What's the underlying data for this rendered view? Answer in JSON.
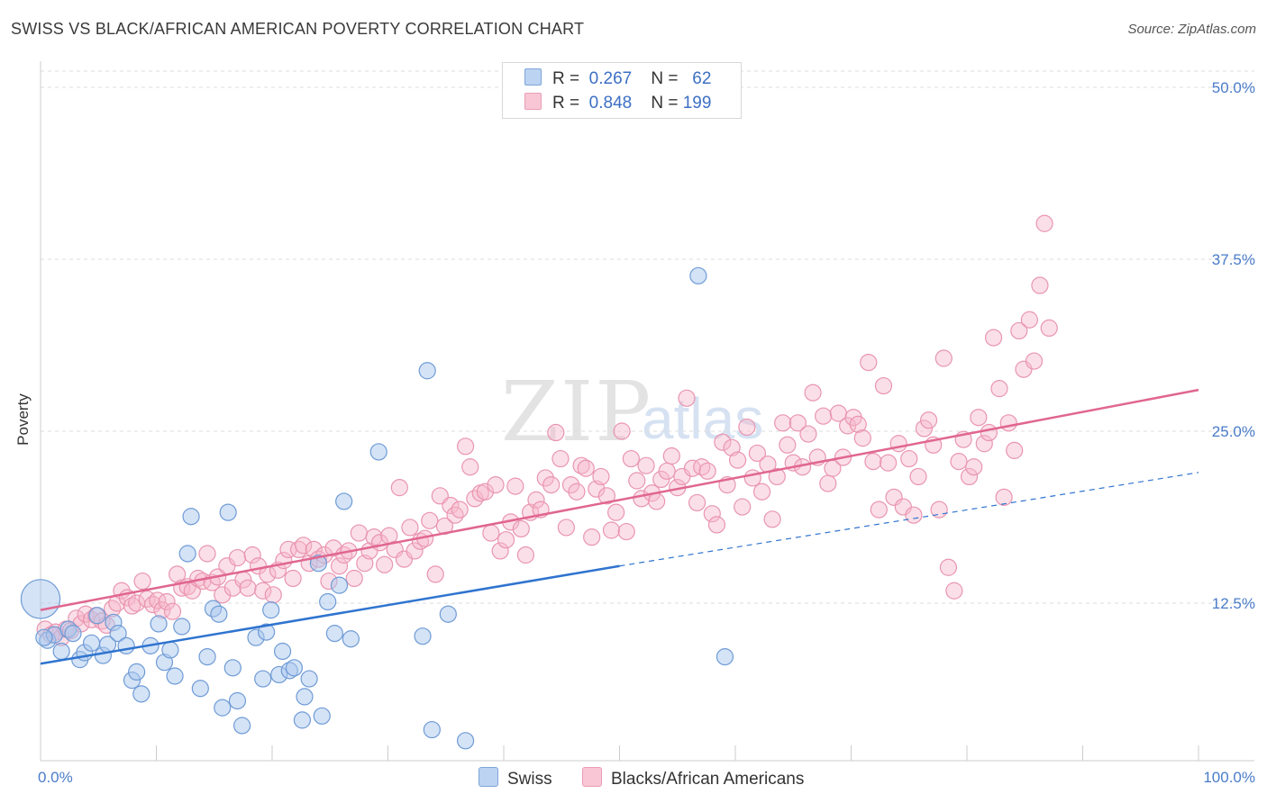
{
  "title": "SWISS VS BLACK/AFRICAN AMERICAN POVERTY CORRELATION CHART",
  "source": "Source: ZipAtlas.com",
  "watermark": {
    "zip": "ZIP",
    "atlas": "atlas"
  },
  "colors": {
    "swiss_fill": "#aac7ee",
    "swiss_stroke": "#6f9bd6",
    "swiss_line": "#2f74cf",
    "black_fill": "#f6b9cc",
    "black_stroke": "#e995b0",
    "black_line": "#e06690",
    "tick_text": "#4a7cc9",
    "grid": "#dddddd"
  },
  "legend": {
    "rows": [
      {
        "r_label": "R =",
        "r_value": "0.267",
        "n_label": "N =",
        "n_value": "62"
      },
      {
        "r_label": "R =",
        "r_value": "0.848",
        "n_label": "N =",
        "n_value": "199"
      }
    ]
  },
  "chart_data": {
    "type": "scatter",
    "title": "SWISS VS BLACK/AFRICAN AMERICAN POVERTY CORRELATION CHART",
    "xlabel": "",
    "ylabel": "Poverty",
    "xlim": [
      0,
      100
    ],
    "ylim": [
      0,
      51
    ],
    "x_tick_labels": [
      "0.0%",
      "100.0%"
    ],
    "y_ticks": [
      12.5,
      25.0,
      37.5,
      50.0
    ],
    "y_tick_labels": [
      "12.5%",
      "25.0%",
      "37.5%",
      "50.0%"
    ],
    "grid": true,
    "legend_position": "bottom",
    "series": [
      {
        "name": "Swiss",
        "r": 0.267,
        "n": 62,
        "trend": {
          "x0": 0,
          "y0": 8.1,
          "x1": 50,
          "y1": 15.2,
          "dash_to_x": 100,
          "dash_to_y": 22.0
        },
        "points": [
          [
            0.0,
            12.8,
            2.4
          ],
          [
            0.6,
            9.8,
            1.0
          ],
          [
            1.2,
            10.2,
            1.0
          ],
          [
            1.8,
            9.0,
            1.0
          ],
          [
            2.4,
            10.6,
            1.0
          ],
          [
            2.8,
            10.3,
            1.0
          ],
          [
            3.4,
            8.4,
            1.0
          ],
          [
            3.8,
            8.9,
            1.0
          ],
          [
            4.4,
            9.6,
            1.0
          ],
          [
            4.9,
            11.6,
            1.0
          ],
          [
            5.4,
            8.7,
            1.0
          ],
          [
            5.8,
            9.5,
            1.0
          ],
          [
            6.3,
            11.1,
            1.0
          ],
          [
            6.7,
            10.3,
            1.0
          ],
          [
            7.4,
            9.4,
            1.0
          ],
          [
            7.9,
            6.9,
            1.0
          ],
          [
            8.3,
            7.5,
            1.0
          ],
          [
            8.7,
            5.9,
            1.0
          ],
          [
            9.5,
            9.4,
            1.0
          ],
          [
            10.2,
            11.0,
            1.0
          ],
          [
            10.7,
            8.2,
            1.0
          ],
          [
            11.2,
            9.1,
            1.0
          ],
          [
            11.6,
            7.2,
            1.0
          ],
          [
            12.2,
            10.8,
            1.0
          ],
          [
            12.7,
            16.1,
            1.0
          ],
          [
            13.0,
            18.8,
            1.0
          ],
          [
            13.8,
            6.3,
            1.0
          ],
          [
            14.4,
            8.6,
            1.0
          ],
          [
            14.9,
            12.1,
            1.0
          ],
          [
            15.4,
            11.7,
            1.0
          ],
          [
            15.7,
            4.9,
            1.0
          ],
          [
            16.2,
            19.1,
            1.0
          ],
          [
            16.6,
            7.8,
            1.0
          ],
          [
            17.0,
            5.4,
            1.0
          ],
          [
            17.4,
            3.6,
            1.0
          ],
          [
            18.6,
            10.0,
            1.0
          ],
          [
            19.2,
            7.0,
            1.0
          ],
          [
            19.5,
            10.4,
            1.0
          ],
          [
            19.9,
            12.0,
            1.0
          ],
          [
            20.6,
            7.3,
            1.0
          ],
          [
            20.9,
            9.0,
            1.0
          ],
          [
            21.5,
            7.6,
            1.0
          ],
          [
            21.9,
            7.8,
            1.0
          ],
          [
            22.6,
            4.0,
            1.0
          ],
          [
            22.8,
            5.7,
            1.0
          ],
          [
            23.2,
            7.0,
            1.0
          ],
          [
            24.0,
            15.4,
            1.0
          ],
          [
            24.3,
            4.3,
            1.0
          ],
          [
            24.8,
            12.6,
            1.0
          ],
          [
            25.4,
            10.3,
            1.0
          ],
          [
            25.8,
            13.8,
            1.0
          ],
          [
            26.2,
            19.9,
            1.0
          ],
          [
            26.8,
            9.9,
            1.0
          ],
          [
            29.2,
            23.5,
            1.0
          ],
          [
            33.0,
            10.1,
            1.0
          ],
          [
            33.4,
            29.4,
            1.0
          ],
          [
            33.8,
            3.3,
            1.0
          ],
          [
            35.2,
            11.7,
            1.0
          ],
          [
            36.7,
            2.5,
            1.0
          ],
          [
            56.8,
            36.3,
            1.0
          ],
          [
            59.1,
            8.6,
            1.0
          ],
          [
            0.3,
            10.0,
            1.0
          ]
        ]
      },
      {
        "name": "Blacks/African Americans",
        "r": 0.848,
        "n": 199,
        "trend": {
          "x0": 0,
          "y0": 12.0,
          "x1": 100,
          "y1": 28.0
        },
        "points": [
          [
            0.4,
            10.6
          ],
          [
            0.9,
            10.2
          ],
          [
            1.3,
            10.4
          ],
          [
            1.8,
            10.0
          ],
          [
            2.2,
            10.6
          ],
          [
            2.6,
            10.5
          ],
          [
            3.1,
            11.4
          ],
          [
            3.5,
            11.0
          ],
          [
            3.9,
            11.7
          ],
          [
            4.4,
            11.3
          ],
          [
            4.8,
            11.6
          ],
          [
            5.3,
            11.2
          ],
          [
            5.7,
            10.9
          ],
          [
            6.2,
            12.1
          ],
          [
            6.6,
            12.5
          ],
          [
            7.0,
            13.4
          ],
          [
            7.5,
            12.9
          ],
          [
            7.9,
            12.3
          ],
          [
            8.3,
            12.5
          ],
          [
            8.8,
            14.1
          ],
          [
            9.2,
            12.8
          ],
          [
            9.7,
            12.4
          ],
          [
            10.1,
            12.7
          ],
          [
            10.5,
            12.0
          ],
          [
            10.9,
            12.6
          ],
          [
            11.4,
            11.9
          ],
          [
            11.8,
            14.6
          ],
          [
            12.2,
            13.6
          ],
          [
            12.7,
            13.7
          ],
          [
            13.1,
            13.4
          ],
          [
            13.6,
            14.3
          ],
          [
            14.0,
            14.1
          ],
          [
            14.4,
            16.1
          ],
          [
            14.8,
            14.0
          ],
          [
            15.3,
            14.4
          ],
          [
            15.7,
            13.1
          ],
          [
            16.1,
            15.2
          ],
          [
            16.6,
            13.6
          ],
          [
            17.0,
            15.8
          ],
          [
            17.5,
            14.2
          ],
          [
            17.9,
            13.6
          ],
          [
            18.3,
            16.0
          ],
          [
            18.8,
            15.2
          ],
          [
            19.2,
            13.4
          ],
          [
            19.6,
            14.6
          ],
          [
            20.1,
            13.1
          ],
          [
            20.5,
            14.9
          ],
          [
            21.0,
            15.6
          ],
          [
            21.4,
            16.4
          ],
          [
            21.8,
            14.3
          ],
          [
            22.3,
            16.4
          ],
          [
            22.7,
            16.7
          ],
          [
            23.2,
            15.4
          ],
          [
            23.6,
            16.4
          ],
          [
            24.0,
            15.7
          ],
          [
            24.5,
            16.0
          ],
          [
            24.9,
            14.1
          ],
          [
            25.3,
            16.5
          ],
          [
            25.8,
            15.2
          ],
          [
            26.2,
            16.0
          ],
          [
            26.6,
            16.3
          ],
          [
            27.1,
            14.3
          ],
          [
            27.5,
            17.6
          ],
          [
            28.0,
            15.4
          ],
          [
            28.4,
            16.3
          ],
          [
            28.8,
            17.3
          ],
          [
            29.3,
            16.9
          ],
          [
            29.7,
            15.3
          ],
          [
            30.1,
            17.4
          ],
          [
            30.6,
            16.4
          ],
          [
            31.0,
            20.9
          ],
          [
            31.4,
            15.7
          ],
          [
            31.9,
            18.0
          ],
          [
            32.3,
            16.3
          ],
          [
            32.8,
            17.0
          ],
          [
            33.2,
            17.2
          ],
          [
            33.6,
            18.5
          ],
          [
            34.1,
            14.6
          ],
          [
            34.5,
            20.3
          ],
          [
            34.9,
            18.1
          ],
          [
            35.4,
            19.6
          ],
          [
            35.8,
            18.9
          ],
          [
            36.2,
            19.3
          ],
          [
            36.7,
            23.9
          ],
          [
            37.1,
            22.4
          ],
          [
            37.5,
            20.1
          ],
          [
            38.0,
            20.5
          ],
          [
            38.4,
            20.6
          ],
          [
            38.9,
            17.6
          ],
          [
            39.3,
            21.1
          ],
          [
            39.7,
            16.3
          ],
          [
            40.2,
            17.1
          ],
          [
            40.6,
            18.4
          ],
          [
            41.0,
            21.0
          ],
          [
            41.5,
            17.9
          ],
          [
            41.9,
            16.0
          ],
          [
            42.3,
            19.1
          ],
          [
            42.8,
            20.0
          ],
          [
            43.2,
            19.3
          ],
          [
            43.6,
            21.6
          ],
          [
            44.1,
            21.1
          ],
          [
            44.5,
            24.9
          ],
          [
            44.9,
            23.0
          ],
          [
            45.4,
            18.0
          ],
          [
            45.8,
            21.1
          ],
          [
            46.3,
            20.6
          ],
          [
            46.7,
            22.5
          ],
          [
            47.1,
            22.3
          ],
          [
            47.6,
            17.3
          ],
          [
            48.0,
            20.8
          ],
          [
            48.4,
            21.7
          ],
          [
            48.9,
            20.3
          ],
          [
            49.3,
            17.8
          ],
          [
            49.7,
            19.1
          ],
          [
            50.2,
            25.0
          ],
          [
            50.6,
            17.7
          ],
          [
            51.0,
            23.0
          ],
          [
            51.5,
            21.4
          ],
          [
            51.9,
            20.1
          ],
          [
            52.3,
            22.5
          ],
          [
            52.8,
            20.5
          ],
          [
            53.2,
            19.9
          ],
          [
            53.6,
            21.5
          ],
          [
            54.1,
            22.1
          ],
          [
            54.5,
            23.2
          ],
          [
            55.0,
            20.9
          ],
          [
            55.4,
            21.7
          ],
          [
            55.8,
            27.4
          ],
          [
            56.3,
            22.3
          ],
          [
            56.7,
            19.8
          ],
          [
            57.1,
            22.4
          ],
          [
            57.6,
            22.1
          ],
          [
            58.0,
            19.0
          ],
          [
            58.4,
            18.2
          ],
          [
            58.9,
            24.2
          ],
          [
            59.3,
            21.1
          ],
          [
            59.7,
            23.8
          ],
          [
            60.2,
            22.9
          ],
          [
            60.6,
            19.5
          ],
          [
            61.0,
            25.3
          ],
          [
            61.5,
            21.6
          ],
          [
            61.9,
            23.4
          ],
          [
            62.3,
            20.6
          ],
          [
            62.8,
            22.6
          ],
          [
            63.2,
            18.6
          ],
          [
            63.6,
            21.7
          ],
          [
            64.1,
            25.6
          ],
          [
            64.5,
            24.0
          ],
          [
            65.0,
            22.7
          ],
          [
            65.4,
            25.6
          ],
          [
            65.8,
            22.4
          ],
          [
            66.3,
            24.8
          ],
          [
            66.7,
            27.8
          ],
          [
            67.1,
            23.1
          ],
          [
            67.6,
            26.1
          ],
          [
            68.0,
            21.2
          ],
          [
            68.4,
            22.3
          ],
          [
            68.9,
            26.3
          ],
          [
            69.3,
            23.1
          ],
          [
            69.7,
            25.4
          ],
          [
            70.2,
            26.0
          ],
          [
            70.6,
            25.5
          ],
          [
            71.0,
            24.5
          ],
          [
            71.5,
            30.0
          ],
          [
            71.9,
            22.8
          ],
          [
            72.4,
            19.3
          ],
          [
            72.8,
            28.3
          ],
          [
            73.2,
            22.7
          ],
          [
            73.7,
            20.2
          ],
          [
            74.1,
            24.1
          ],
          [
            74.5,
            19.5
          ],
          [
            75.0,
            23.0
          ],
          [
            75.4,
            18.9
          ],
          [
            75.8,
            21.7
          ],
          [
            76.3,
            25.2
          ],
          [
            76.7,
            25.8
          ],
          [
            77.1,
            24.0
          ],
          [
            77.6,
            19.3
          ],
          [
            78.0,
            30.3
          ],
          [
            78.4,
            15.1
          ],
          [
            78.9,
            13.4
          ],
          [
            79.3,
            22.8
          ],
          [
            79.7,
            24.4
          ],
          [
            80.2,
            21.7
          ],
          [
            80.6,
            22.4
          ],
          [
            81.0,
            26.0
          ],
          [
            81.5,
            24.1
          ],
          [
            81.9,
            24.9
          ],
          [
            82.3,
            31.8
          ],
          [
            82.8,
            28.1
          ],
          [
            83.2,
            20.2
          ],
          [
            83.6,
            25.6
          ],
          [
            84.1,
            23.6
          ],
          [
            84.5,
            32.3
          ],
          [
            84.9,
            29.5
          ],
          [
            85.4,
            33.1
          ],
          [
            85.8,
            30.1
          ],
          [
            86.3,
            35.6
          ],
          [
            86.7,
            40.1
          ],
          [
            87.1,
            32.5
          ]
        ]
      }
    ]
  },
  "bottom_legend": [
    {
      "label": "Swiss"
    },
    {
      "label": "Blacks/African Americans"
    }
  ]
}
